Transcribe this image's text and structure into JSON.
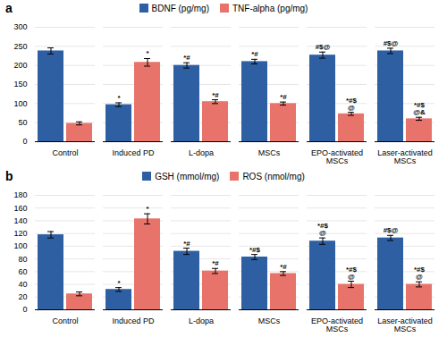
{
  "chart_data": [
    {
      "type": "bar",
      "title": "a",
      "categories": [
        "Control",
        "Induced PD",
        "L-dopa",
        "MSCs",
        "EPO-activated\nMSCs",
        "Laser-activated\nMSCs"
      ],
      "series": [
        {
          "name": "BDNF (pg/mg)",
          "color": "#2E5FA3",
          "values": [
            238,
            97,
            200,
            210,
            227,
            238
          ],
          "errors": [
            8,
            5,
            7,
            6,
            8,
            7
          ],
          "annotations": [
            null,
            "*",
            "*#",
            "*#",
            "#$@",
            "#$@"
          ]
        },
        {
          "name": "TNF-alpha (pg/mg)",
          "color": "#E8736A",
          "values": [
            48,
            208,
            105,
            100,
            73,
            60
          ],
          "errors": [
            4,
            10,
            5,
            4,
            4,
            4
          ],
          "annotations": [
            null,
            "*",
            "*#",
            "*#",
            "*#$\n@",
            "*#$\n@&"
          ]
        }
      ],
      "ylim": [
        0,
        300
      ],
      "yticks": [
        0,
        50,
        100,
        150,
        200,
        250,
        300
      ],
      "grid": true,
      "legend": "top"
    },
    {
      "type": "bar",
      "title": "b",
      "categories": [
        "Control",
        "Induced PD",
        "L-dopa",
        "MSCs",
        "EPO-activated\nMSCs",
        "Laser-activated\nMSCs"
      ],
      "series": [
        {
          "name": "GSH (mmol/mg)",
          "color": "#2E5FA3",
          "values": [
            118,
            32,
            92,
            83,
            108,
            113
          ],
          "errors": [
            5,
            3,
            5,
            4,
            5,
            4
          ],
          "annotations": [
            null,
            "*",
            "*#",
            "*#$",
            "*#$\n@",
            "#$@"
          ]
        },
        {
          "name": "ROS (nmol/mg)",
          "color": "#E8736A",
          "values": [
            25,
            143,
            61,
            57,
            40,
            40
          ],
          "errors": [
            3,
            8,
            4,
            3,
            5,
            4
          ],
          "annotations": [
            null,
            "*",
            "*#",
            "*#",
            "*#$\n@",
            "*#$\n@"
          ]
        }
      ],
      "ylim": [
        0,
        180
      ],
      "yticks": [
        0,
        20,
        40,
        60,
        80,
        100,
        120,
        140,
        160,
        180
      ],
      "grid": true,
      "legend": "top"
    }
  ]
}
